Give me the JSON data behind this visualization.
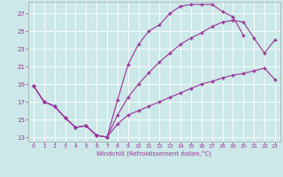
{
  "xlabel": "Windchill (Refroidissement éolien,°C)",
  "background_color": "#cce8e8",
  "line_color": "#993399",
  "xlim": [
    -0.5,
    23.5
  ],
  "ylim": [
    12.5,
    28.3
  ],
  "yticks": [
    13,
    15,
    17,
    19,
    21,
    23,
    25,
    27
  ],
  "xticks": [
    0,
    1,
    2,
    3,
    4,
    5,
    6,
    7,
    8,
    9,
    10,
    11,
    12,
    13,
    14,
    15,
    16,
    17,
    18,
    19,
    20,
    21,
    22,
    23
  ],
  "line1_x": [
    0,
    1,
    2,
    3,
    4,
    5,
    6,
    7,
    8,
    9,
    10,
    11,
    12,
    13,
    14,
    15,
    16,
    17,
    18,
    19,
    20
  ],
  "line1_y": [
    18.8,
    17.0,
    16.5,
    15.2,
    14.1,
    14.3,
    13.2,
    13.0,
    17.2,
    21.2,
    23.5,
    25.0,
    25.7,
    27.0,
    27.8,
    28.0,
    28.0,
    28.0,
    27.2,
    26.6,
    24.5
  ],
  "line2_x": [
    0,
    1,
    2,
    3,
    4,
    5,
    6,
    7,
    8,
    9,
    10,
    11,
    12,
    13,
    14,
    15,
    16,
    17,
    18,
    19,
    20,
    21,
    22,
    23
  ],
  "line2_y": [
    18.8,
    17.0,
    16.5,
    15.2,
    14.1,
    14.3,
    13.2,
    13.0,
    15.5,
    17.5,
    19.0,
    20.3,
    21.5,
    22.5,
    23.5,
    24.2,
    24.8,
    25.5,
    26.0,
    26.2,
    26.0,
    24.2,
    22.5,
    24.0
  ],
  "line3_x": [
    0,
    1,
    2,
    3,
    4,
    5,
    6,
    7,
    8,
    9,
    10,
    11,
    12,
    13,
    14,
    15,
    16,
    17,
    18,
    19,
    20,
    21,
    22,
    23
  ],
  "line3_y": [
    18.8,
    17.0,
    16.5,
    15.2,
    14.1,
    14.3,
    13.2,
    13.0,
    14.5,
    15.5,
    16.0,
    16.5,
    17.0,
    17.5,
    18.0,
    18.5,
    19.0,
    19.3,
    19.7,
    20.0,
    20.2,
    20.5,
    20.8,
    19.5
  ]
}
